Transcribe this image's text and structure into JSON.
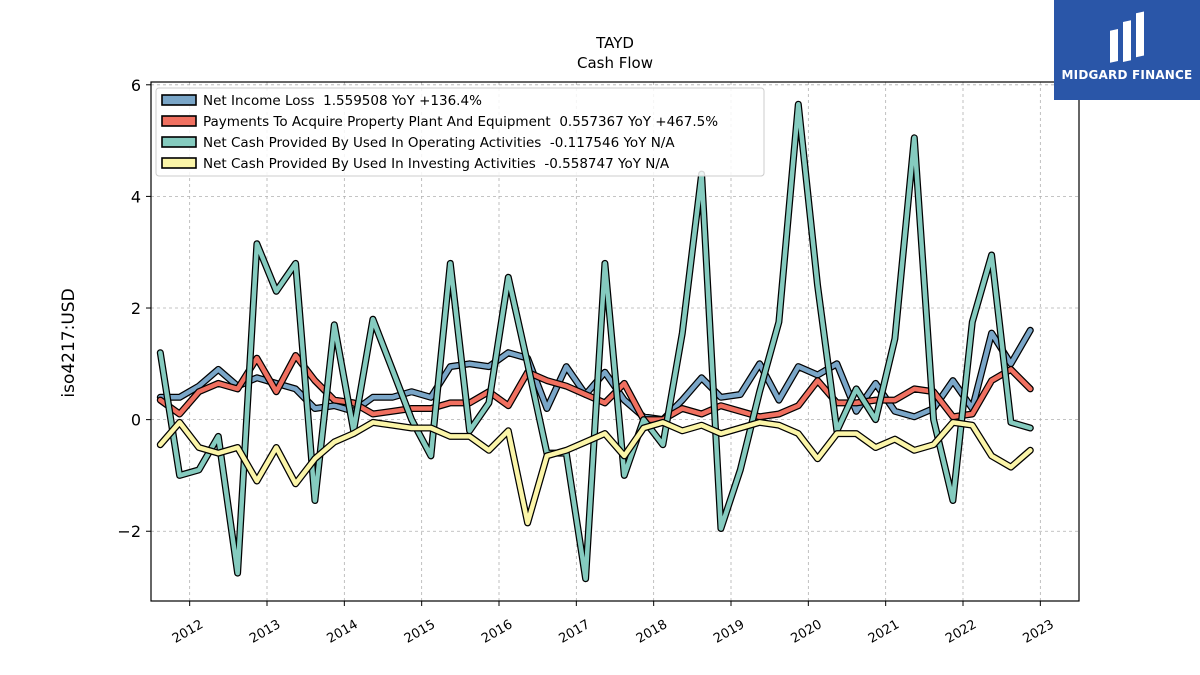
{
  "brand": {
    "name": "MIDGARD FINANCE",
    "bg_color": "#2a56a8"
  },
  "chart_data": {
    "type": "line",
    "title": "TAYD",
    "subtitle": "Cash Flow",
    "ylabel": "iso4217:USD",
    "xlabel": "",
    "xlim": [
      2011.5,
      2023.5
    ],
    "ylim": [
      -3.25,
      6.05
    ],
    "yticks": [
      -2,
      0,
      2,
      4,
      6
    ],
    "ytick_labels": [
      "−2",
      "0",
      "2",
      "4",
      "6"
    ],
    "xticks": [
      2012,
      2013,
      2014,
      2015,
      2016,
      2017,
      2018,
      2019,
      2020,
      2021,
      2022,
      2023
    ],
    "xtick_labels": [
      "2012",
      "2013",
      "2014",
      "2015",
      "2016",
      "2017",
      "2018",
      "2019",
      "2020",
      "2021",
      "2022",
      "2023"
    ],
    "grid": true,
    "legend_position": "top-left",
    "x": [
      2011.62,
      2011.87,
      2012.12,
      2012.37,
      2012.62,
      2012.87,
      2013.12,
      2013.37,
      2013.62,
      2013.87,
      2014.12,
      2014.37,
      2014.62,
      2014.87,
      2015.12,
      2015.37,
      2015.62,
      2015.87,
      2016.12,
      2016.37,
      2016.62,
      2016.87,
      2017.12,
      2017.37,
      2017.62,
      2017.87,
      2018.12,
      2018.37,
      2018.62,
      2018.87,
      2019.12,
      2019.37,
      2019.62,
      2019.87,
      2020.12,
      2020.37,
      2020.62,
      2020.87,
      2021.12,
      2021.37,
      2021.62,
      2021.87,
      2022.12,
      2022.37,
      2022.62,
      2022.87
    ],
    "series": [
      {
        "name": "Net Income Loss  1.559508 YoY +136.4%",
        "color": "#7aa6c8",
        "values": [
          0.4,
          0.4,
          0.6,
          0.9,
          0.6,
          0.75,
          0.65,
          0.55,
          0.2,
          0.25,
          0.15,
          0.4,
          0.4,
          0.5,
          0.4,
          0.95,
          1.0,
          0.95,
          1.2,
          1.1,
          0.2,
          0.95,
          0.45,
          0.85,
          0.35,
          0.05,
          0.0,
          0.35,
          0.75,
          0.4,
          0.45,
          1.0,
          0.35,
          0.95,
          0.8,
          1.0,
          0.15,
          0.65,
          0.15,
          0.05,
          0.2,
          0.7,
          0.2,
          1.55,
          1.0,
          1.6
        ]
      },
      {
        "name": "Payments To Acquire Property Plant And Equipment  0.557367 YoY +467.5%",
        "color": "#f07060",
        "values": [
          0.35,
          0.1,
          0.5,
          0.65,
          0.55,
          1.1,
          0.5,
          1.15,
          0.7,
          0.35,
          0.3,
          0.1,
          0.15,
          0.2,
          0.2,
          0.3,
          0.3,
          0.5,
          0.25,
          0.85,
          0.7,
          0.6,
          0.45,
          0.3,
          0.65,
          0.0,
          0.0,
          0.2,
          0.1,
          0.25,
          0.15,
          0.05,
          0.1,
          0.25,
          0.7,
          0.3,
          0.3,
          0.35,
          0.35,
          0.55,
          0.5,
          0.05,
          0.1,
          0.7,
          0.9,
          0.55
        ]
      },
      {
        "name": "Net Cash Provided By Used In Operating Activities  -0.117546 YoY N/A",
        "color": "#85cbbf",
        "values": [
          1.2,
          -1.0,
          -0.9,
          -0.3,
          -2.75,
          3.15,
          2.3,
          2.8,
          -1.45,
          1.7,
          -0.2,
          1.8,
          0.9,
          0.0,
          -0.65,
          2.8,
          -0.2,
          0.3,
          2.55,
          1.0,
          -0.6,
          -0.6,
          -2.85,
          2.8,
          -1.0,
          0.0,
          -0.45,
          1.55,
          4.4,
          -1.95,
          -0.9,
          0.5,
          1.75,
          5.65,
          2.4,
          -0.2,
          0.55,
          0.0,
          1.45,
          5.05,
          0.0,
          -1.45,
          1.75,
          2.95,
          -0.05,
          -0.15
        ]
      },
      {
        "name": "Net Cash Provided By Used In Investing Activities  -0.558747 YoY N/A",
        "color": "#fbf5a8",
        "values": [
          -0.45,
          -0.05,
          -0.5,
          -0.6,
          -0.5,
          -1.1,
          -0.5,
          -1.15,
          -0.7,
          -0.4,
          -0.25,
          -0.05,
          -0.1,
          -0.15,
          -0.15,
          -0.3,
          -0.3,
          -0.55,
          -0.2,
          -1.85,
          -0.65,
          -0.55,
          -0.4,
          -0.25,
          -0.65,
          -0.15,
          -0.05,
          -0.2,
          -0.1,
          -0.25,
          -0.15,
          -0.05,
          -0.1,
          -0.25,
          -0.7,
          -0.25,
          -0.25,
          -0.5,
          -0.35,
          -0.55,
          -0.45,
          -0.05,
          -0.1,
          -0.65,
          -0.85,
          -0.55
        ]
      }
    ]
  }
}
